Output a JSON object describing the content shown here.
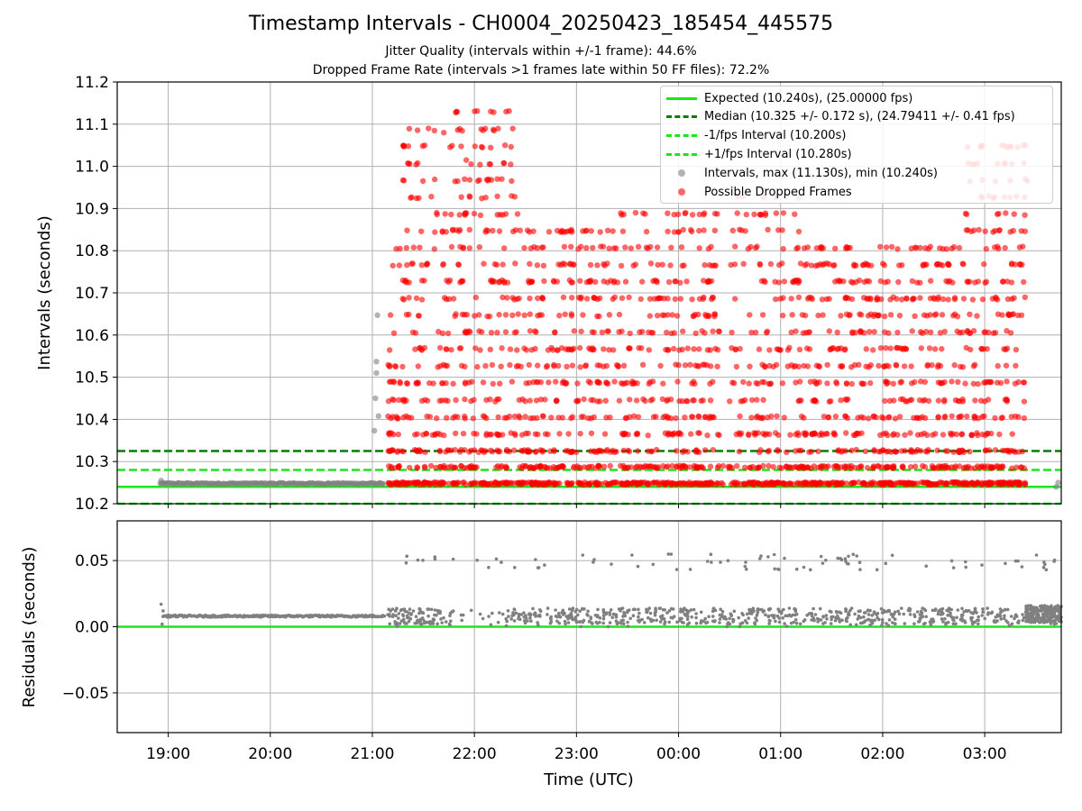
{
  "title": "Timestamp Intervals - CH0004_20250423_185454_445575",
  "subtitle1": "Jitter Quality (intervals within +/-1 frame): 44.6%",
  "subtitle2": "Dropped Frame Rate (intervals >1 frames late within 50 FF files): 72.2%",
  "colors": {
    "expected": "#1ee41e",
    "median": "#007f00",
    "fps_band": "#1ee41e",
    "intervals": "#808080",
    "dropped": "#ff0000",
    "grid": "#b0b0b0"
  },
  "chart_data": [
    {
      "type": "scatter",
      "ylabel": "Intervals (seconds)",
      "ylim": [
        10.2,
        11.2
      ],
      "yticks": [
        "10.2",
        "10.3",
        "10.4",
        "10.5",
        "10.6",
        "10.7",
        "10.8",
        "10.9",
        "11.0",
        "11.1",
        "11.2"
      ],
      "xlim_hours": [
        18.5,
        27.75
      ],
      "grid": true,
      "legend_position": "top-right",
      "reference_lines": [
        {
          "name": "Expected (10.240s), (25.00000 fps)",
          "y": 10.24,
          "style": "solid"
        },
        {
          "name": "Median (10.325 +/- 0.172 s), (24.79411 +/- 0.41 fps)",
          "y": 10.325,
          "style": "dashed"
        },
        {
          "name": "-1/fps Interval (10.200s)",
          "y": 10.2,
          "style": "dashed"
        },
        {
          "name": "+1/fps Interval (10.280s)",
          "y": 10.28,
          "style": "dashed"
        }
      ],
      "series": [
        {
          "name": "Intervals, max (11.130s), min (10.240s)",
          "marker": "gray dots",
          "description_ranges": {
            "steady_segment_hours": [
              18.92,
              21.12
            ],
            "steady_value": 10.248,
            "max": 11.13,
            "min": 10.24
          }
        },
        {
          "name": "Possible Dropped Frames",
          "marker": "red dots",
          "dropped_frame_hours": [
            21.1,
            27.45
          ],
          "discrete_levels": [
            10.248,
            10.287,
            10.325,
            10.365,
            10.405,
            10.445,
            10.487,
            10.527,
            10.567,
            10.607,
            10.647,
            10.687,
            10.727,
            10.767,
            10.807,
            10.847,
            10.887,
            10.927,
            10.967,
            11.007,
            11.047,
            11.087,
            11.13
          ]
        }
      ]
    },
    {
      "type": "scatter",
      "ylabel": "Residuals (seconds)",
      "ylim": [
        -0.08,
        0.08
      ],
      "yticks": [
        "−0.05",
        "0.00",
        "0.05"
      ],
      "xlabel": "Time (UTC)",
      "xticks": [
        "19:00",
        "20:00",
        "21:00",
        "22:00",
        "23:00",
        "00:00",
        "01:00",
        "02:00",
        "03:00"
      ],
      "x_tick_hours": [
        19,
        20,
        21,
        22,
        23,
        24,
        25,
        26,
        27
      ],
      "xlim_hours": [
        18.5,
        27.75
      ],
      "reference_lines": [
        {
          "name": "zero residual",
          "y": 0.0,
          "style": "solid"
        }
      ],
      "residual_levels": [
        0.008,
        0.049
      ],
      "steady_residual": 0.008
    }
  ]
}
